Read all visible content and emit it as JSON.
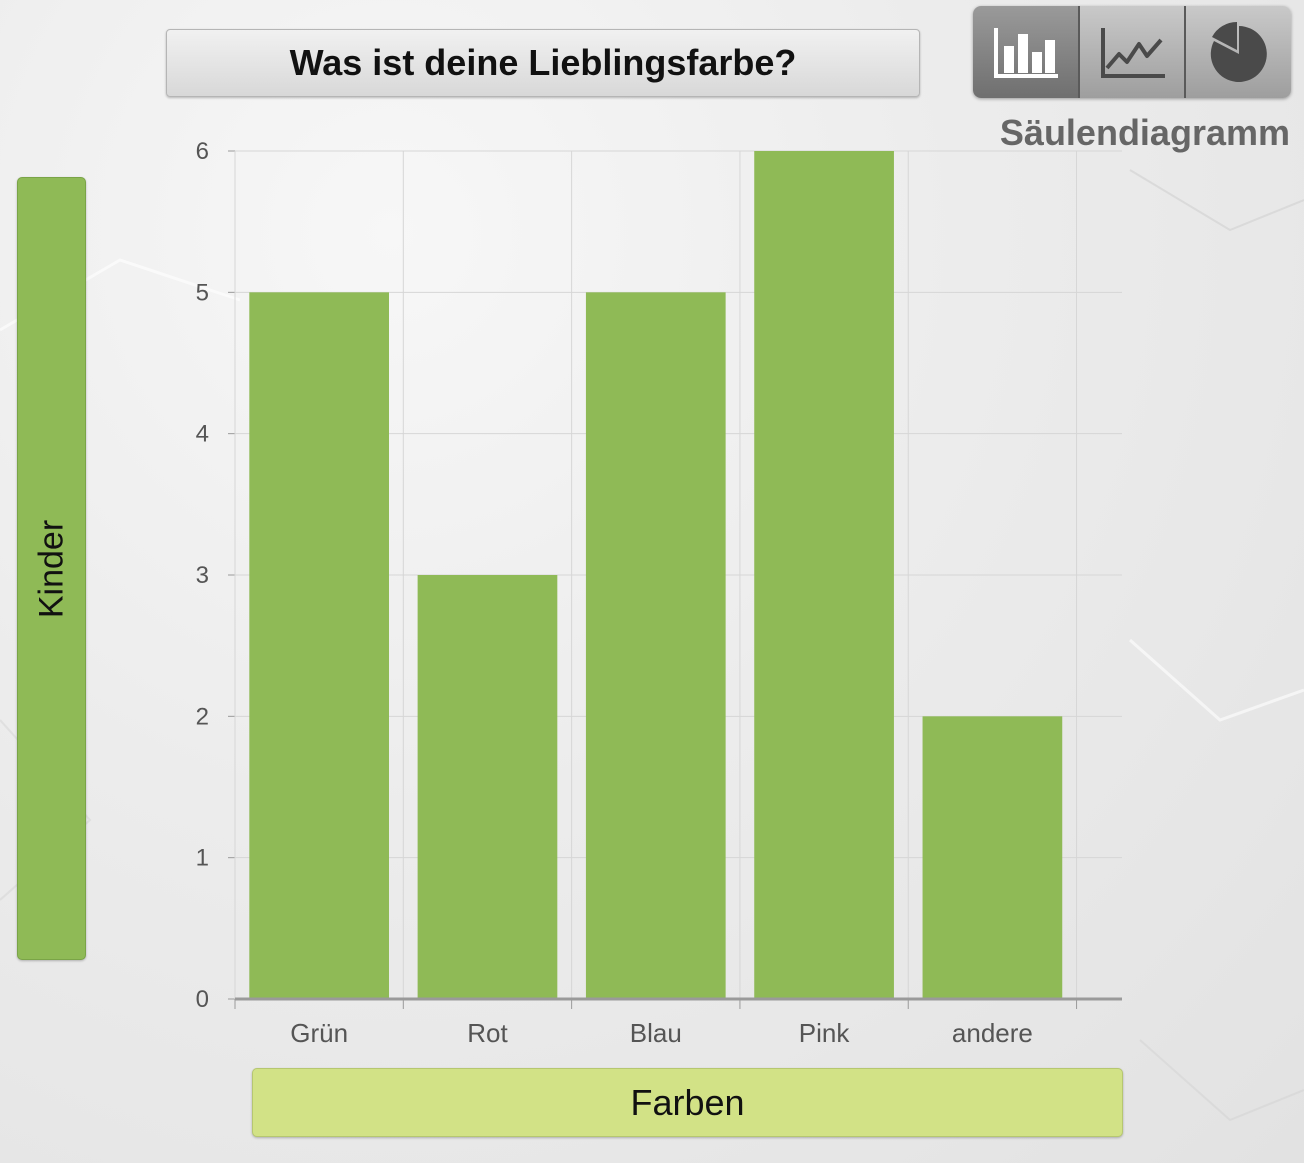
{
  "header": {
    "title": "Was ist deine Lieblingsfarbe?"
  },
  "chart_switcher": {
    "buttons": [
      {
        "icon": "bar-chart-icon",
        "active": true
      },
      {
        "icon": "line-chart-icon",
        "active": false
      },
      {
        "icon": "pie-chart-icon",
        "active": false
      }
    ],
    "selected_label": "Säulendiagramm"
  },
  "colors": {
    "bar": "#8fba56",
    "ylabel_bg": "#8fba56",
    "xlabel_bg": "#d2e286",
    "grid": "#d6d6d6",
    "axis": "#9a9a9a",
    "tick_text": "#555555"
  },
  "chart_data": {
    "type": "bar",
    "title": "Was ist deine Lieblingsfarbe?",
    "xlabel": "Farben",
    "ylabel": "Kinder",
    "categories": [
      "Grün",
      "Rot",
      "Blau",
      "Pink",
      "andere"
    ],
    "values": [
      5,
      3,
      5,
      6,
      2
    ],
    "ylim": [
      0,
      6
    ],
    "yticks": [
      0,
      1,
      2,
      3,
      4,
      5,
      6
    ],
    "grid": true,
    "legend": "none"
  }
}
